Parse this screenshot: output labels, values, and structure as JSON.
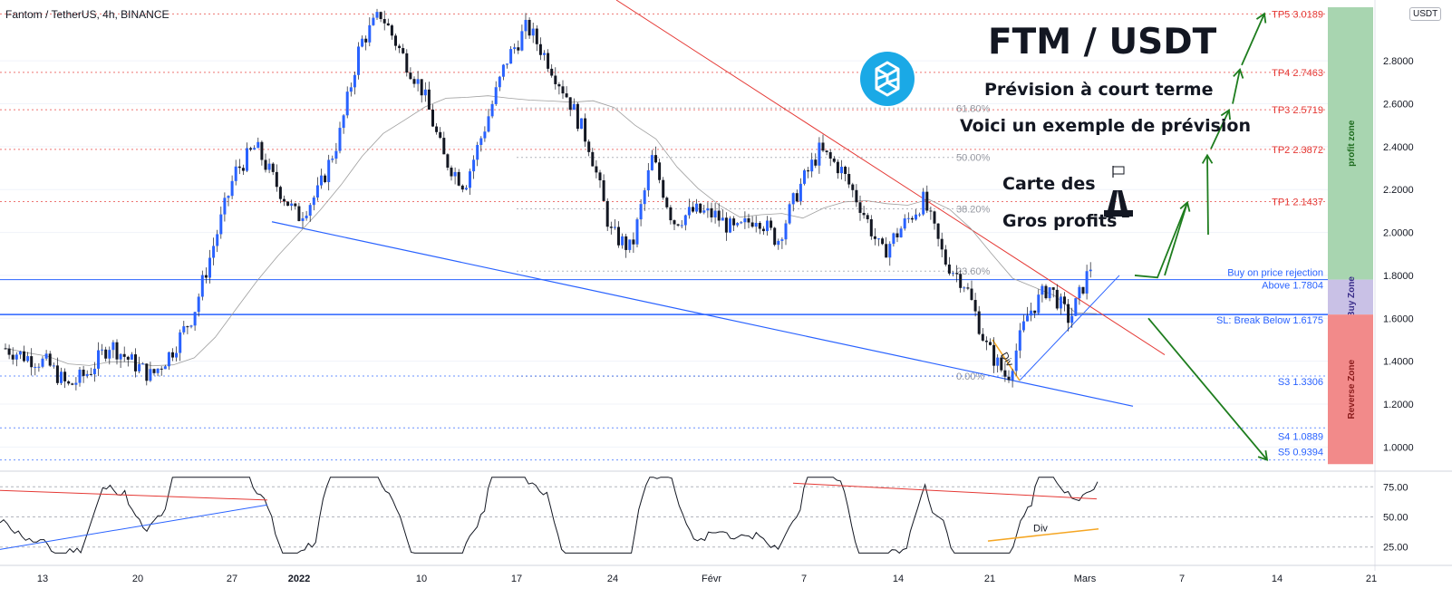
{
  "header": {
    "symbol": "Fantom / TetherUS, 4h, BINANCE",
    "currency": "USDT"
  },
  "overlay": {
    "title": "FTM / USDT",
    "line1": "Prévision à court terme",
    "line2": "Voici un exemple de prévision",
    "line3": "Carte des",
    "line4": "Gros profits"
  },
  "colors": {
    "green": "#1e7d1e",
    "red": "#e53935",
    "blue": "#2962ff",
    "orange": "#f5a623",
    "profit_zone": "#a8d5b0",
    "buy_zone": "#c9c1e6",
    "reverse_zone": "#f28a8a"
  },
  "chart_data": {
    "type": "candlestick",
    "price_axis": {
      "min": 0.9,
      "max": 3.05,
      "ticks": [
        "1.0000",
        "1.2000",
        "1.4000",
        "1.6000",
        "1.8000",
        "2.0000",
        "2.2000",
        "2.4000",
        "2.6000",
        "2.8000"
      ]
    },
    "time_axis": [
      "13",
      "20",
      "27",
      "2022",
      "10",
      "17",
      "24",
      "Févr",
      "7",
      "14",
      "21",
      "Mars",
      "7",
      "14",
      "21"
    ],
    "levels": [
      {
        "label": "TP5 3.0189",
        "value": 3.0189,
        "color": "red"
      },
      {
        "label": "TP4 2.7463",
        "value": 2.7463,
        "color": "red"
      },
      {
        "label": "TP3 2.5719",
        "value": 2.5719,
        "color": "red"
      },
      {
        "label": "TP2 2.3872",
        "value": 2.3872,
        "color": "red"
      },
      {
        "label": "TP1 2.1437",
        "value": 2.1437,
        "color": "red"
      },
      {
        "label": "Buy on price rejection",
        "value": 1.7804,
        "color": "blue"
      },
      {
        "label": "Above 1.7804",
        "value": 1.7804,
        "color": "blue"
      },
      {
        "label": "SL: Break Below 1.6175",
        "value": 1.6175,
        "color": "blue"
      },
      {
        "label": "S3 1.3306",
        "value": 1.3306,
        "color": "blue"
      },
      {
        "label": "S4 1.0889",
        "value": 1.0889,
        "color": "blue"
      },
      {
        "label": "S5 0.9394",
        "value": 0.9394,
        "color": "blue"
      }
    ],
    "fib": [
      {
        "label": "61.80%",
        "value": 2.58
      },
      {
        "label": "50.00%",
        "value": 2.35
      },
      {
        "label": "38.20%",
        "value": 2.11
      },
      {
        "label": "23.60%",
        "value": 1.82
      },
      {
        "label": "0.00%",
        "value": 1.33
      }
    ],
    "zones": [
      {
        "label": "profit zone",
        "from": 3.05,
        "to": 1.7804
      },
      {
        "label": "Buy Zone",
        "from": 1.7804,
        "to": 1.6175
      },
      {
        "label": "Reverse Zone",
        "from": 1.6175,
        "to": 0.92
      }
    ],
    "price_path": [
      1.46,
      1.42,
      1.39,
      1.28,
      1.35,
      1.48,
      1.4,
      1.33,
      1.45,
      1.62,
      1.95,
      2.28,
      2.4,
      2.22,
      2.07,
      2.19,
      2.45,
      2.88,
      3.02,
      2.83,
      2.66,
      2.35,
      2.22,
      2.5,
      2.8,
      2.96,
      2.8,
      2.62,
      2.4,
      2.0,
      1.92,
      2.35,
      2.05,
      2.1,
      2.08,
      2.0,
      2.08,
      1.96,
      2.2,
      2.38,
      2.3,
      2.12,
      1.9,
      2.03,
      2.15,
      1.87,
      1.76,
      1.47,
      1.32,
      1.62,
      1.75,
      1.59,
      1.84
    ],
    "divergence_label": "Div",
    "rsi": {
      "min": 15,
      "max": 85,
      "ticks": [
        "25.00",
        "50.00",
        "75.00"
      ]
    }
  }
}
